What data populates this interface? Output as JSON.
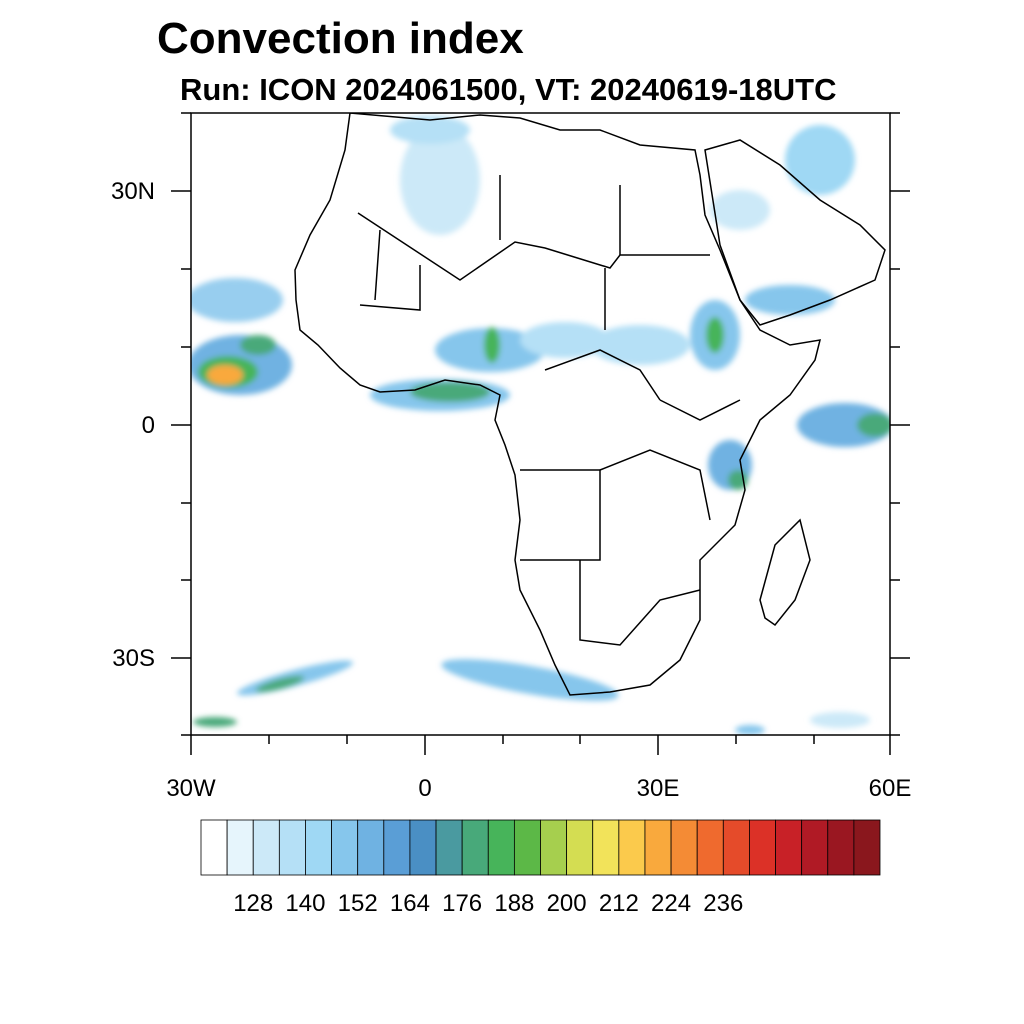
{
  "title": "Convection index",
  "subtitle": "Run: ICON 2024061500,  VT: 20240619-18UTC",
  "axes": {
    "lat_labels": [
      "30N",
      "0",
      "30S"
    ],
    "lon_labels": [
      "30W",
      "0",
      "30E",
      "60E"
    ],
    "lon_range": [
      -30,
      60
    ],
    "lat_range": [
      -40,
      40
    ]
  },
  "colorbar": {
    "colors": [
      "#ffffff",
      "#e6f5fc",
      "#cce9f8",
      "#b5e0f6",
      "#9fd8f4",
      "#86c6ec",
      "#6fb2e2",
      "#5a9ed6",
      "#4a8fc4",
      "#4a9aa0",
      "#48a97a",
      "#47b45a",
      "#5cb847",
      "#a6cf4e",
      "#d4dd52",
      "#f2e35a",
      "#fbca4c",
      "#f9a93d",
      "#f48b35",
      "#ef6a2e",
      "#e54b2a",
      "#dc3127",
      "#c82127",
      "#b01a25",
      "#9a1721",
      "#8a171d"
    ],
    "labels": [
      "128",
      "140",
      "152",
      "164",
      "176",
      "188",
      "200",
      "212",
      "224",
      "236"
    ]
  }
}
